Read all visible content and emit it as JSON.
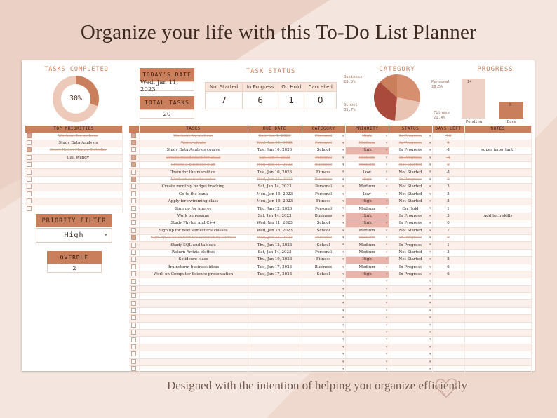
{
  "headline": "Organize your life with this To-Do List Planner",
  "footer": "Designed with the intention of helping you organize efficiently",
  "colors": {
    "accent": "#c97f5c",
    "light": "#ecc9b8",
    "highlight": "#e9b4ac",
    "background": "#efd9ce"
  },
  "tasks_completed": {
    "label": "TASKS COMPLETED",
    "percent": "30%",
    "fraction": 0.3
  },
  "today": {
    "label": "TODAY'S DATE",
    "value": "Wed, Jan 11, 2023"
  },
  "total": {
    "label": "TOTAL TASKS",
    "value": "20"
  },
  "task_status": {
    "label": "TASK STATUS",
    "headers": [
      "Not Started",
      "In Progress",
      "On Hold",
      "Cancelled"
    ],
    "values": [
      "7",
      "6",
      "1",
      "0"
    ]
  },
  "category": {
    "label": "CATEGORY",
    "legend": [
      {
        "name": "Business",
        "pct": "28.5%"
      },
      {
        "name": "Personal",
        "pct": "28.5%"
      },
      {
        "name": "School",
        "pct": "35.7%"
      },
      {
        "name": "Fitness",
        "pct": "21.4%"
      }
    ]
  },
  "progress": {
    "label": "PROGRESS",
    "bars": [
      {
        "name": "Pending",
        "value": "14"
      },
      {
        "name": "Done",
        "value": "6"
      }
    ]
  },
  "top_priorities": {
    "label": "TOP PRIORITIES",
    "items": [
      {
        "text": "Workout for an hour",
        "done": true
      },
      {
        "text": "Study Data Analysis",
        "done": false
      },
      {
        "text": "Greet Hailey Happy Birthday",
        "done": true
      },
      {
        "text": "Call Wendy",
        "done": false
      },
      {
        "text": "",
        "done": false
      },
      {
        "text": "",
        "done": false
      },
      {
        "text": "",
        "done": false
      },
      {
        "text": "",
        "done": false
      },
      {
        "text": "",
        "done": false
      },
      {
        "text": "",
        "done": false
      },
      {
        "text": "",
        "done": false
      }
    ]
  },
  "priority_filter": {
    "label": "PRIORITY FILTER",
    "value": "High",
    "arrow": "▾"
  },
  "overdue": {
    "label": "OVERDUE",
    "value": "2"
  },
  "tasks_table": {
    "headers": [
      "TASKS",
      "DUE DATE",
      "CATEGORY",
      "PRIORITY",
      "STATUS",
      "DAYS LEFT",
      "NOTES"
    ],
    "rows": [
      {
        "done": true,
        "task": "Workout for an hour",
        "due": "Sun, Jan 1, 2023",
        "category": "Personal",
        "priority": "High",
        "status": "In Progress",
        "days": "-10",
        "notes": ""
      },
      {
        "done": true,
        "task": "Water plants",
        "due": "Wed, Jan 11, 2023",
        "category": "Personal",
        "priority": "Medium",
        "status": "In Progress",
        "days": "0",
        "notes": ""
      },
      {
        "done": false,
        "task": "Study Data Analysis course",
        "due": "Tue, Jan 10, 2023",
        "category": "School",
        "priority": "High",
        "status": "In Progress",
        "days": "-1",
        "notes": "super important!"
      },
      {
        "done": true,
        "task": "Create moodboard for 2023",
        "due": "Sat, Jan 7, 2023",
        "category": "Personal",
        "priority": "Medium",
        "status": "In Progress",
        "days": "-4",
        "notes": ""
      },
      {
        "done": true,
        "task": "Create a business plan",
        "due": "Wed, Jan 11, 2023",
        "category": "Business",
        "priority": "Medium",
        "status": "Not Started",
        "days": "0",
        "notes": ""
      },
      {
        "done": false,
        "task": "Train for the marathon",
        "due": "Tue, Jan 10, 2023",
        "category": "Fitness",
        "priority": "Low",
        "status": "Not Started",
        "days": "-1",
        "notes": ""
      },
      {
        "done": true,
        "task": "Work on youtube video",
        "due": "Wed, Jan 11, 2023",
        "category": "Business",
        "priority": "High",
        "status": "In Progress",
        "days": "0",
        "notes": ""
      },
      {
        "done": false,
        "task": "Create monthly budget tracking",
        "due": "Sat, Jan 14, 2023",
        "category": "Personal",
        "priority": "Medium",
        "status": "Not Started",
        "days": "3",
        "notes": ""
      },
      {
        "done": false,
        "task": "Go to the bank",
        "due": "Mon, Jan 16, 2023",
        "category": "Personal",
        "priority": "Low",
        "status": "Not Started",
        "days": "5",
        "notes": ""
      },
      {
        "done": false,
        "task": "Apply for swimming class",
        "due": "Mon, Jan 16, 2023",
        "category": "Fitness",
        "priority": "High",
        "status": "Not Started",
        "days": "5",
        "notes": ""
      },
      {
        "done": false,
        "task": "Sign up for improv",
        "due": "Thu, Jan 12, 2023",
        "category": "Personal",
        "priority": "Medium",
        "status": "On Hold",
        "days": "1",
        "notes": ""
      },
      {
        "done": false,
        "task": "Work on resume",
        "due": "Sat, Jan 14, 2023",
        "category": "Business",
        "priority": "High",
        "status": "In Progress",
        "days": "3",
        "notes": "Add tech skills"
      },
      {
        "done": false,
        "task": "Study Phyton and C++",
        "due": "Wed, Jan 11, 2023",
        "category": "School",
        "priority": "High",
        "status": "In Progress",
        "days": "0",
        "notes": ""
      },
      {
        "done": false,
        "task": "Sign up for next semester's classes",
        "due": "Wed, Jan 18, 2023",
        "category": "School",
        "priority": "Medium",
        "status": "Not Started",
        "days": "7",
        "notes": ""
      },
      {
        "done": true,
        "task": "Sign up to volunteer for community service",
        "due": "Wed, Jan 11, 2023",
        "category": "Personal",
        "priority": "Medium",
        "status": "In Progress",
        "days": "0",
        "notes": ""
      },
      {
        "done": false,
        "task": "Study SQL and tableau",
        "due": "Thu, Jan 12, 2023",
        "category": "School",
        "priority": "Medium",
        "status": "In Progress",
        "days": "1",
        "notes": ""
      },
      {
        "done": false,
        "task": "Return Aritzia clothes",
        "due": "Sat, Jan 14, 2023",
        "category": "Personal",
        "priority": "Medium",
        "status": "Not Started",
        "days": "3",
        "notes": ""
      },
      {
        "done": false,
        "task": "Solidcore class",
        "due": "Thu, Jan 19, 2023",
        "category": "Fitness",
        "priority": "High",
        "status": "Not Started",
        "days": "8",
        "notes": ""
      },
      {
        "done": false,
        "task": "Brainstorm business ideas",
        "due": "Tue, Jan 17, 2023",
        "category": "Business",
        "priority": "Medium",
        "status": "In Progress",
        "days": "6",
        "notes": ""
      },
      {
        "done": false,
        "task": "Work on Computer Science presentation",
        "due": "Tue, Jan 17, 2023",
        "category": "School",
        "priority": "High",
        "status": "In Progress",
        "days": "6",
        "notes": ""
      }
    ],
    "empty_rows": 13
  }
}
